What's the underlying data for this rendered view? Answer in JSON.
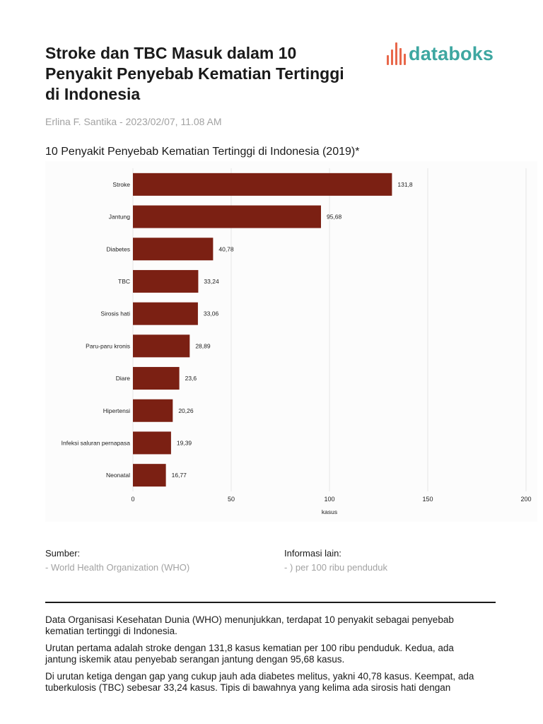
{
  "article": {
    "headline": "Stroke dan TBC Masuk dalam 10 Penyakit Penyebab Kematian Tertinggi di Indonesia",
    "byline": "Erlina F. Santika - 2023/02/07, 11.08 AM"
  },
  "brand": {
    "name": "databoks",
    "icon": "databoks-bars-logo",
    "colors": {
      "teal": "#3ea7a1",
      "orange": "#e8674a"
    }
  },
  "chart_data": {
    "type": "bar",
    "orientation": "horizontal",
    "title": "10 Penyakit Penyebab Kematian Tertinggi di Indonesia (2019)*",
    "categories": [
      "Stroke",
      "Jantung",
      "Diabetes",
      "TBC",
      "Sirosis hati",
      "Paru-paru kronis",
      "Diare",
      "Hipertensi",
      "Infeksi saluran pernapasa",
      "Neonatal"
    ],
    "values": [
      131.8,
      95.68,
      40.78,
      33.24,
      33.06,
      28.89,
      23.6,
      20.26,
      19.39,
      16.77
    ],
    "value_labels": [
      "131,8",
      "95,68",
      "40,78",
      "33,24",
      "33,06",
      "28,89",
      "23,6",
      "20,26",
      "19,39",
      "16,77"
    ],
    "xlabel": "kasus",
    "xlim": [
      0,
      200
    ],
    "xticks": [
      0,
      50,
      100,
      150,
      200
    ],
    "grid": true,
    "bar_color": "#7b2013"
  },
  "source": {
    "label": "Sumber:",
    "value": "- World Health Organization (WHO)"
  },
  "info": {
    "label": "Informasi lain:",
    "value": "- ) per 100 ribu penduduk"
  },
  "body": {
    "p1": "Data Organisasi Kesehatan Dunia (WHO) menunjukkan, terdapat 10 penyakit sebagai penyebab kematian tertinggi di Indonesia.",
    "p2": "Urutan pertama adalah stroke dengan 131,8 kasus kematian per 100 ribu penduduk. Kedua, ada jantung iskemik atau penyebab serangan jantung dengan 95,68 kasus.",
    "p3": "Di urutan ketiga dengan gap yang cukup jauh ada diabetes melitus, yakni 40,78 kasus. Keempat, ada tuberkulosis (TBC) sebesar 33,24 kasus. Tipis di bawahnya yang kelima ada sirosis hati dengan"
  }
}
